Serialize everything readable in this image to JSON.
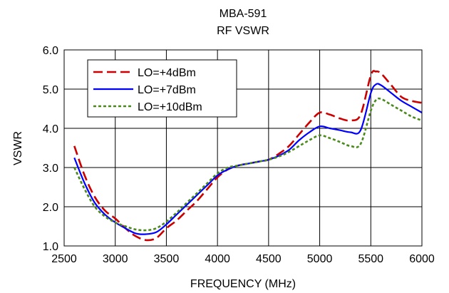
{
  "chart_data": {
    "type": "line",
    "title": "MBA-591",
    "subtitle": "RF VSWR",
    "xlabel": "FREQUENCY (MHz)",
    "ylabel": "VSWR",
    "xlim": [
      2500,
      6000
    ],
    "ylim": [
      1.0,
      6.0
    ],
    "xticks": [
      "2500",
      "3000",
      "3500",
      "4000",
      "4500",
      "5000",
      "5500",
      "6000"
    ],
    "yticks": [
      "1.0",
      "2.0",
      "3.0",
      "4.0",
      "5.0",
      "6.0"
    ],
    "grid": true,
    "legend_position": "top-left",
    "series": [
      {
        "name": "LO=+4dBm",
        "color": "#cc0000",
        "dash": "dashed",
        "x": [
          2600,
          2700,
          2800,
          2900,
          3000,
          3100,
          3200,
          3300,
          3400,
          3500,
          3600,
          3700,
          3800,
          3900,
          4000,
          4100,
          4200,
          4300,
          4400,
          4500,
          4600,
          4700,
          4800,
          4900,
          5000,
          5100,
          5200,
          5300,
          5400,
          5500,
          5550,
          5600,
          5700,
          5800,
          5900,
          6000
        ],
        "y": [
          3.55,
          2.8,
          2.25,
          1.9,
          1.7,
          1.45,
          1.25,
          1.15,
          1.2,
          1.45,
          1.65,
          1.9,
          2.15,
          2.45,
          2.75,
          2.95,
          3.05,
          3.1,
          3.15,
          3.2,
          3.35,
          3.55,
          3.85,
          4.15,
          4.4,
          4.35,
          4.25,
          4.2,
          4.35,
          5.35,
          5.45,
          5.4,
          5.1,
          4.8,
          4.7,
          4.65
        ]
      },
      {
        "name": "LO=+7dBm",
        "color": "#0000ff",
        "dash": "solid",
        "x": [
          2600,
          2700,
          2800,
          2900,
          3000,
          3100,
          3200,
          3300,
          3400,
          3500,
          3600,
          3700,
          3800,
          3900,
          4000,
          4100,
          4200,
          4300,
          4400,
          4500,
          4600,
          4700,
          4800,
          4900,
          5000,
          5100,
          5200,
          5300,
          5400,
          5500,
          5550,
          5600,
          5700,
          5800,
          5900,
          6000
        ],
        "y": [
          3.25,
          2.6,
          2.1,
          1.8,
          1.6,
          1.45,
          1.32,
          1.3,
          1.35,
          1.55,
          1.8,
          2.05,
          2.3,
          2.55,
          2.8,
          2.95,
          3.05,
          3.1,
          3.15,
          3.2,
          3.3,
          3.45,
          3.7,
          3.9,
          4.05,
          4.0,
          3.95,
          3.9,
          3.95,
          4.9,
          5.12,
          5.1,
          4.9,
          4.7,
          4.55,
          4.4
        ]
      },
      {
        "name": "LO=+10dBm",
        "color": "#4a8a1c",
        "dash": "dotted",
        "x": [
          2600,
          2700,
          2800,
          2900,
          3000,
          3100,
          3200,
          3300,
          3400,
          3500,
          3600,
          3700,
          3800,
          3900,
          4000,
          4100,
          4200,
          4300,
          4400,
          4500,
          4600,
          4700,
          4800,
          4900,
          5000,
          5100,
          5200,
          5300,
          5400,
          5500,
          5550,
          5600,
          5700,
          5800,
          5900,
          6000
        ],
        "y": [
          3.0,
          2.45,
          2.0,
          1.75,
          1.6,
          1.5,
          1.42,
          1.4,
          1.45,
          1.62,
          1.85,
          2.1,
          2.35,
          2.6,
          2.85,
          3.0,
          3.05,
          3.1,
          3.15,
          3.2,
          3.28,
          3.4,
          3.55,
          3.7,
          3.82,
          3.75,
          3.65,
          3.55,
          3.6,
          4.45,
          4.72,
          4.75,
          4.6,
          4.45,
          4.3,
          4.2
        ]
      }
    ]
  }
}
